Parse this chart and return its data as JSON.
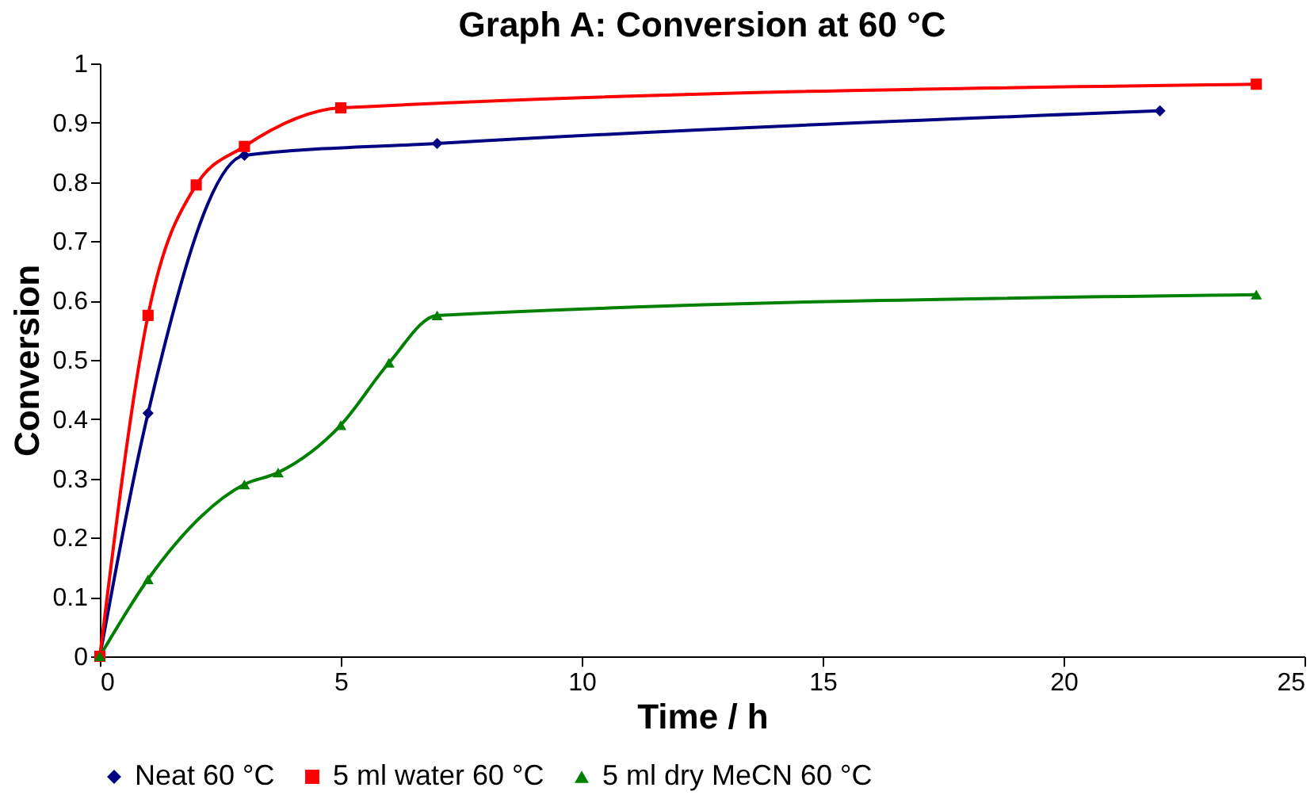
{
  "chart_data": {
    "type": "line",
    "title": "Graph A: Conversion at 60 °C",
    "xlabel": "Time / h",
    "ylabel": "Conversion",
    "xlim": [
      0,
      25
    ],
    "xticks": [
      0,
      5,
      10,
      15,
      20,
      25
    ],
    "ylim": [
      0,
      1
    ],
    "yticks": [
      0,
      0.1,
      0.2,
      0.3,
      0.4,
      0.5,
      0.6,
      0.7,
      0.8,
      0.9,
      1
    ],
    "grid": false,
    "legend": "bottom",
    "series": [
      {
        "name": "Neat 60 °C",
        "color": "#000080",
        "marker": "diamond",
        "x": [
          0,
          1,
          3,
          7,
          22
        ],
        "values": [
          0,
          0.41,
          0.845,
          0.865,
          0.92
        ]
      },
      {
        "name": "5 ml water 60 °C",
        "color": "#ff0000",
        "marker": "square",
        "x": [
          0,
          1,
          2,
          3,
          5,
          24
        ],
        "values": [
          0,
          0.575,
          0.795,
          0.86,
          0.925,
          0.965
        ]
      },
      {
        "name": "5 ml dry MeCN 60 °C",
        "color": "#008000",
        "marker": "triangle",
        "x": [
          0,
          1,
          3,
          3.7,
          5,
          6,
          7,
          24
        ],
        "values": [
          0,
          0.13,
          0.29,
          0.31,
          0.39,
          0.495,
          0.575,
          0.61
        ]
      }
    ]
  }
}
